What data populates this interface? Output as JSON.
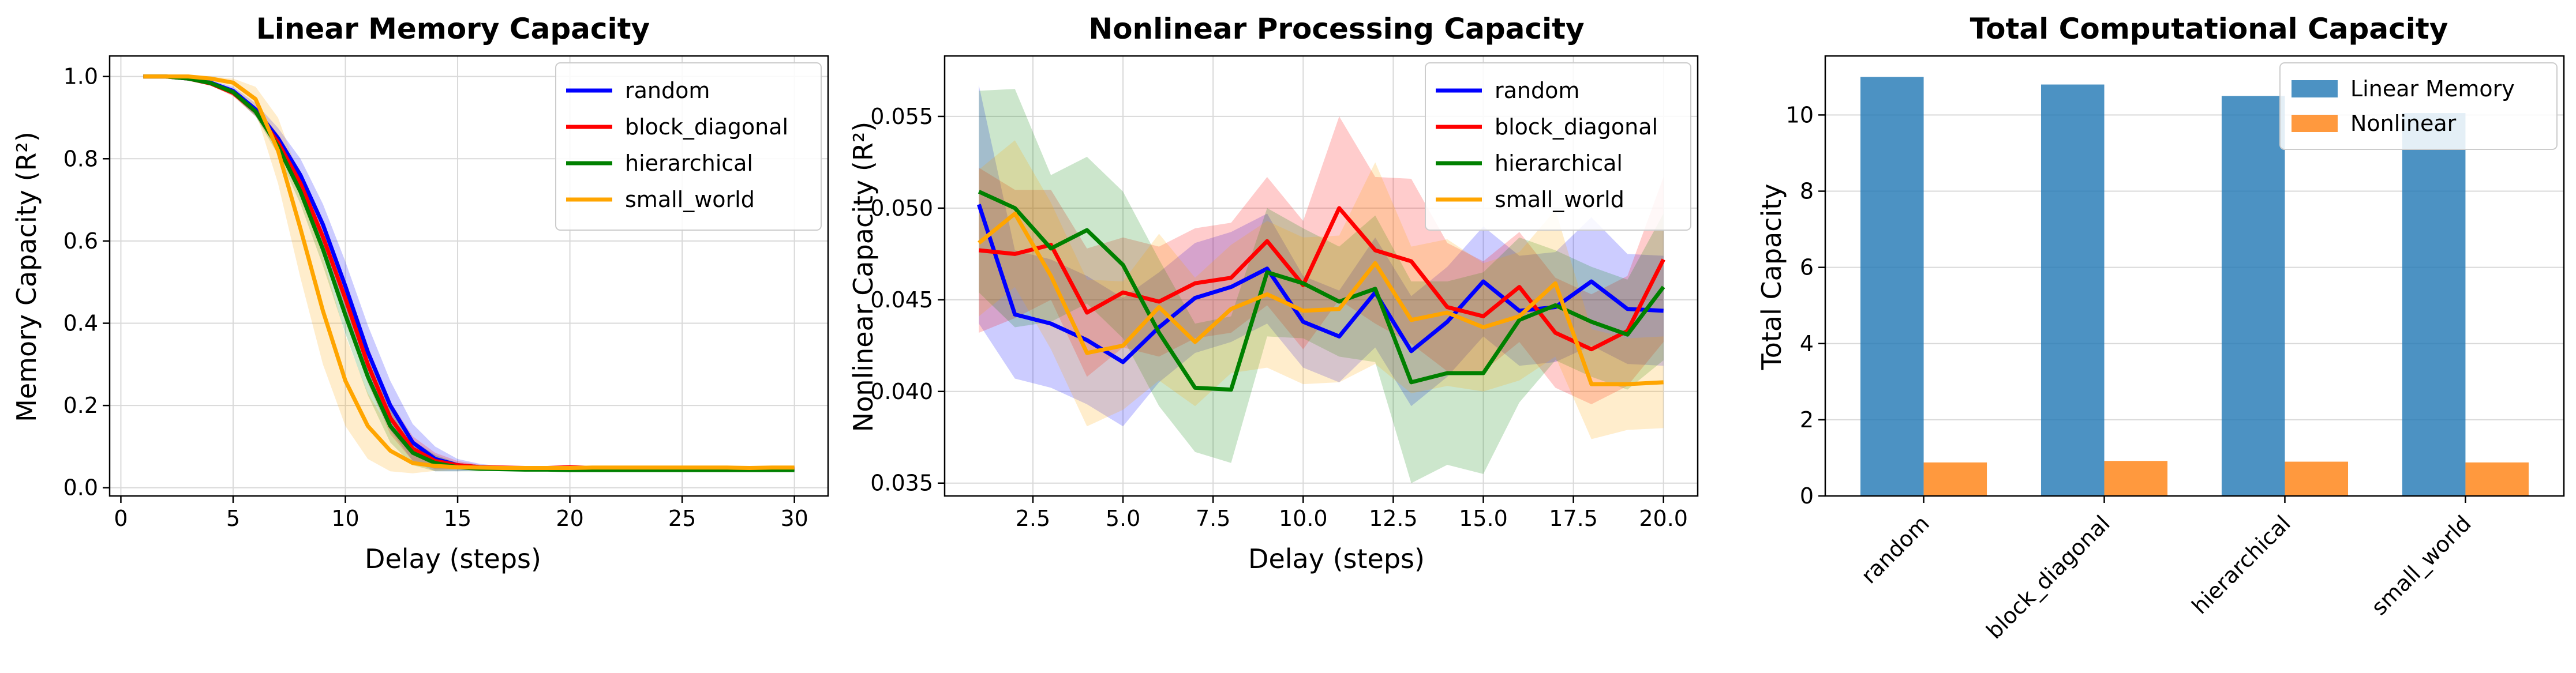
{
  "chart_data": [
    {
      "type": "line",
      "title": "Linear Memory Capacity",
      "xlabel": "Delay (steps)",
      "ylabel": "Memory Capacity (R²)",
      "xlim": [
        -0.5,
        31.5
      ],
      "ylim": [
        -0.02,
        1.05
      ],
      "xticks": [
        0,
        5,
        10,
        15,
        20,
        25,
        30
      ],
      "xtick_labels": [
        "0",
        "5",
        "10",
        "15",
        "20",
        "25",
        "30"
      ],
      "yticks": [
        0.0,
        0.2,
        0.4,
        0.6,
        0.8,
        1.0
      ],
      "ytick_labels": [
        "0.0",
        "0.2",
        "0.4",
        "0.6",
        "0.8",
        "1.0"
      ],
      "grid": true,
      "legend_position": "top-right",
      "x": [
        1,
        2,
        3,
        4,
        5,
        6,
        7,
        8,
        9,
        10,
        11,
        12,
        13,
        14,
        15,
        16,
        17,
        18,
        19,
        20,
        21,
        22,
        23,
        24,
        25,
        26,
        27,
        28,
        29,
        30
      ],
      "series": [
        {
          "name": "random",
          "color": "#0000ff",
          "values": [
            1.0,
            1.0,
            0.995,
            0.985,
            0.965,
            0.92,
            0.85,
            0.76,
            0.64,
            0.49,
            0.33,
            0.2,
            0.11,
            0.07,
            0.055,
            0.05,
            0.048,
            0.047,
            0.046,
            0.046,
            0.046,
            0.046,
            0.046,
            0.046,
            0.046,
            0.046,
            0.046,
            0.046,
            0.046,
            0.046
          ],
          "band": [
            0.0,
            0.0,
            0.003,
            0.006,
            0.01,
            0.015,
            0.025,
            0.04,
            0.05,
            0.06,
            0.065,
            0.06,
            0.045,
            0.03,
            0.015,
            0.008,
            0.004,
            0.003,
            0.003,
            0.003,
            0.003,
            0.003,
            0.003,
            0.003,
            0.003,
            0.003,
            0.003,
            0.003,
            0.003,
            0.003
          ]
        },
        {
          "name": "block_diagonal",
          "color": "#ff0000",
          "values": [
            1.0,
            1.0,
            0.995,
            0.983,
            0.96,
            0.915,
            0.84,
            0.74,
            0.61,
            0.46,
            0.3,
            0.17,
            0.095,
            0.065,
            0.055,
            0.05,
            0.049,
            0.048,
            0.048,
            0.05,
            0.048,
            0.047,
            0.047,
            0.047,
            0.047,
            0.047,
            0.047,
            0.046,
            0.047,
            0.047
          ],
          "band": [
            0.0,
            0.0,
            0.003,
            0.005,
            0.008,
            0.012,
            0.02,
            0.03,
            0.04,
            0.045,
            0.045,
            0.04,
            0.03,
            0.02,
            0.01,
            0.006,
            0.004,
            0.003,
            0.003,
            0.003,
            0.003,
            0.003,
            0.003,
            0.003,
            0.003,
            0.003,
            0.003,
            0.003,
            0.003,
            0.003
          ]
        },
        {
          "name": "hierarchical",
          "color": "#008000",
          "values": [
            1.0,
            1.0,
            0.995,
            0.984,
            0.962,
            0.915,
            0.83,
            0.72,
            0.58,
            0.42,
            0.27,
            0.15,
            0.085,
            0.06,
            0.05,
            0.046,
            0.045,
            0.044,
            0.044,
            0.043,
            0.043,
            0.043,
            0.043,
            0.043,
            0.043,
            0.043,
            0.043,
            0.043,
            0.043,
            0.043
          ],
          "band": [
            0.0,
            0.0,
            0.003,
            0.005,
            0.008,
            0.012,
            0.02,
            0.03,
            0.04,
            0.045,
            0.045,
            0.04,
            0.03,
            0.02,
            0.01,
            0.006,
            0.004,
            0.003,
            0.003,
            0.003,
            0.003,
            0.003,
            0.003,
            0.003,
            0.003,
            0.003,
            0.003,
            0.003,
            0.003,
            0.003
          ]
        },
        {
          "name": "small_world",
          "color": "#ffa500",
          "values": [
            1.0,
            1.0,
            1.0,
            0.995,
            0.985,
            0.945,
            0.82,
            0.63,
            0.43,
            0.26,
            0.15,
            0.09,
            0.06,
            0.053,
            0.05,
            0.049,
            0.048,
            0.048,
            0.048,
            0.048,
            0.049,
            0.049,
            0.049,
            0.049,
            0.049,
            0.049,
            0.049,
            0.048,
            0.049,
            0.049
          ],
          "band": [
            0.0,
            0.0,
            0.002,
            0.005,
            0.01,
            0.03,
            0.08,
            0.12,
            0.13,
            0.11,
            0.08,
            0.05,
            0.025,
            0.012,
            0.006,
            0.004,
            0.003,
            0.003,
            0.003,
            0.003,
            0.003,
            0.003,
            0.003,
            0.003,
            0.003,
            0.003,
            0.003,
            0.003,
            0.003,
            0.003
          ]
        }
      ]
    },
    {
      "type": "line",
      "title": "Nonlinear Processing Capacity",
      "xlabel": "Delay (steps)",
      "ylabel": "Nonlinear Capacity (R²)",
      "xlim": [
        0.05,
        20.95
      ],
      "ylim": [
        0.0343,
        0.0583
      ],
      "xticks": [
        2.5,
        5.0,
        7.5,
        10.0,
        12.5,
        15.0,
        17.5,
        20.0
      ],
      "xtick_labels": [
        "2.5",
        "5.0",
        "7.5",
        "10.0",
        "12.5",
        "15.0",
        "17.5",
        "20.0"
      ],
      "yticks": [
        0.035,
        0.04,
        0.045,
        0.05,
        0.055
      ],
      "ytick_labels": [
        "0.035",
        "0.040",
        "0.045",
        "0.050",
        "0.055"
      ],
      "grid": true,
      "legend_position": "top-right",
      "x": [
        1,
        2,
        3,
        4,
        5,
        6,
        7,
        8,
        9,
        10,
        11,
        12,
        13,
        14,
        15,
        16,
        17,
        18,
        19,
        20
      ],
      "series": [
        {
          "name": "random",
          "color": "#0000ff",
          "values": [
            0.0502,
            0.0442,
            0.0437,
            0.0428,
            0.0416,
            0.0435,
            0.0451,
            0.0457,
            0.0467,
            0.0438,
            0.043,
            0.0454,
            0.0422,
            0.0438,
            0.046,
            0.0444,
            0.0446,
            0.046,
            0.0445,
            0.0444
          ],
          "band": [
            0.0065,
            0.0035,
            0.0035,
            0.0035,
            0.0035,
            0.003,
            0.003,
            0.003,
            0.003,
            0.0025,
            0.0025,
            0.003,
            0.003,
            0.003,
            0.003,
            0.003,
            0.003,
            0.0035,
            0.003,
            0.003
          ]
        },
        {
          "name": "block_diagonal",
          "color": "#ff0000",
          "values": [
            0.0477,
            0.0475,
            0.048,
            0.0443,
            0.0454,
            0.0449,
            0.0459,
            0.0462,
            0.0482,
            0.0458,
            0.05,
            0.0477,
            0.0471,
            0.0446,
            0.0441,
            0.0457,
            0.0432,
            0.0423,
            0.0433,
            0.0472
          ],
          "band": [
            0.0045,
            0.0035,
            0.003,
            0.0035,
            0.003,
            0.003,
            0.003,
            0.003,
            0.0035,
            0.0035,
            0.005,
            0.004,
            0.0045,
            0.0035,
            0.003,
            0.003,
            0.003,
            0.003,
            0.003,
            0.0045
          ]
        },
        {
          "name": "hierarchical",
          "color": "#008000",
          "values": [
            0.0509,
            0.05,
            0.0478,
            0.0488,
            0.0469,
            0.0432,
            0.0402,
            0.0401,
            0.0465,
            0.0459,
            0.0449,
            0.0456,
            0.0405,
            0.041,
            0.041,
            0.0439,
            0.0447,
            0.0438,
            0.0431,
            0.0457
          ],
          "band": [
            0.0055,
            0.0065,
            0.004,
            0.004,
            0.004,
            0.004,
            0.0035,
            0.004,
            0.0035,
            0.003,
            0.003,
            0.004,
            0.0055,
            0.005,
            0.0055,
            0.0045,
            0.003,
            0.003,
            0.003,
            0.004
          ]
        },
        {
          "name": "small_world",
          "color": "#ffa500",
          "values": [
            0.0481,
            0.0497,
            0.0463,
            0.0421,
            0.0425,
            0.0446,
            0.0427,
            0.0445,
            0.0453,
            0.0444,
            0.0445,
            0.047,
            0.0439,
            0.0443,
            0.0435,
            0.0441,
            0.0459,
            0.0404,
            0.0404,
            0.0405
          ],
          "band": [
            0.004,
            0.004,
            0.004,
            0.004,
            0.0035,
            0.004,
            0.0035,
            0.0035,
            0.004,
            0.004,
            0.004,
            0.0055,
            0.004,
            0.004,
            0.0035,
            0.0035,
            0.004,
            0.003,
            0.0025,
            0.0025
          ]
        }
      ]
    },
    {
      "type": "bar",
      "title": "Total Computational Capacity",
      "xlabel": "",
      "ylabel": "Total Capacity",
      "categories": [
        "random",
        "block_diagonal",
        "hierarchical",
        "small_world"
      ],
      "ylim": [
        0,
        11.55
      ],
      "yticks": [
        0,
        2,
        4,
        6,
        8,
        10
      ],
      "ytick_labels": [
        "0",
        "2",
        "4",
        "6",
        "8",
        "10"
      ],
      "grid": true,
      "legend_position": "top-right",
      "series": [
        {
          "name": "Linear Memory",
          "color": "#1f77b4",
          "values": [
            11.0,
            10.8,
            10.5,
            10.05
          ]
        },
        {
          "name": "Nonlinear",
          "color": "#ff7f0e",
          "values": [
            0.88,
            0.92,
            0.9,
            0.88
          ]
        }
      ]
    }
  ]
}
